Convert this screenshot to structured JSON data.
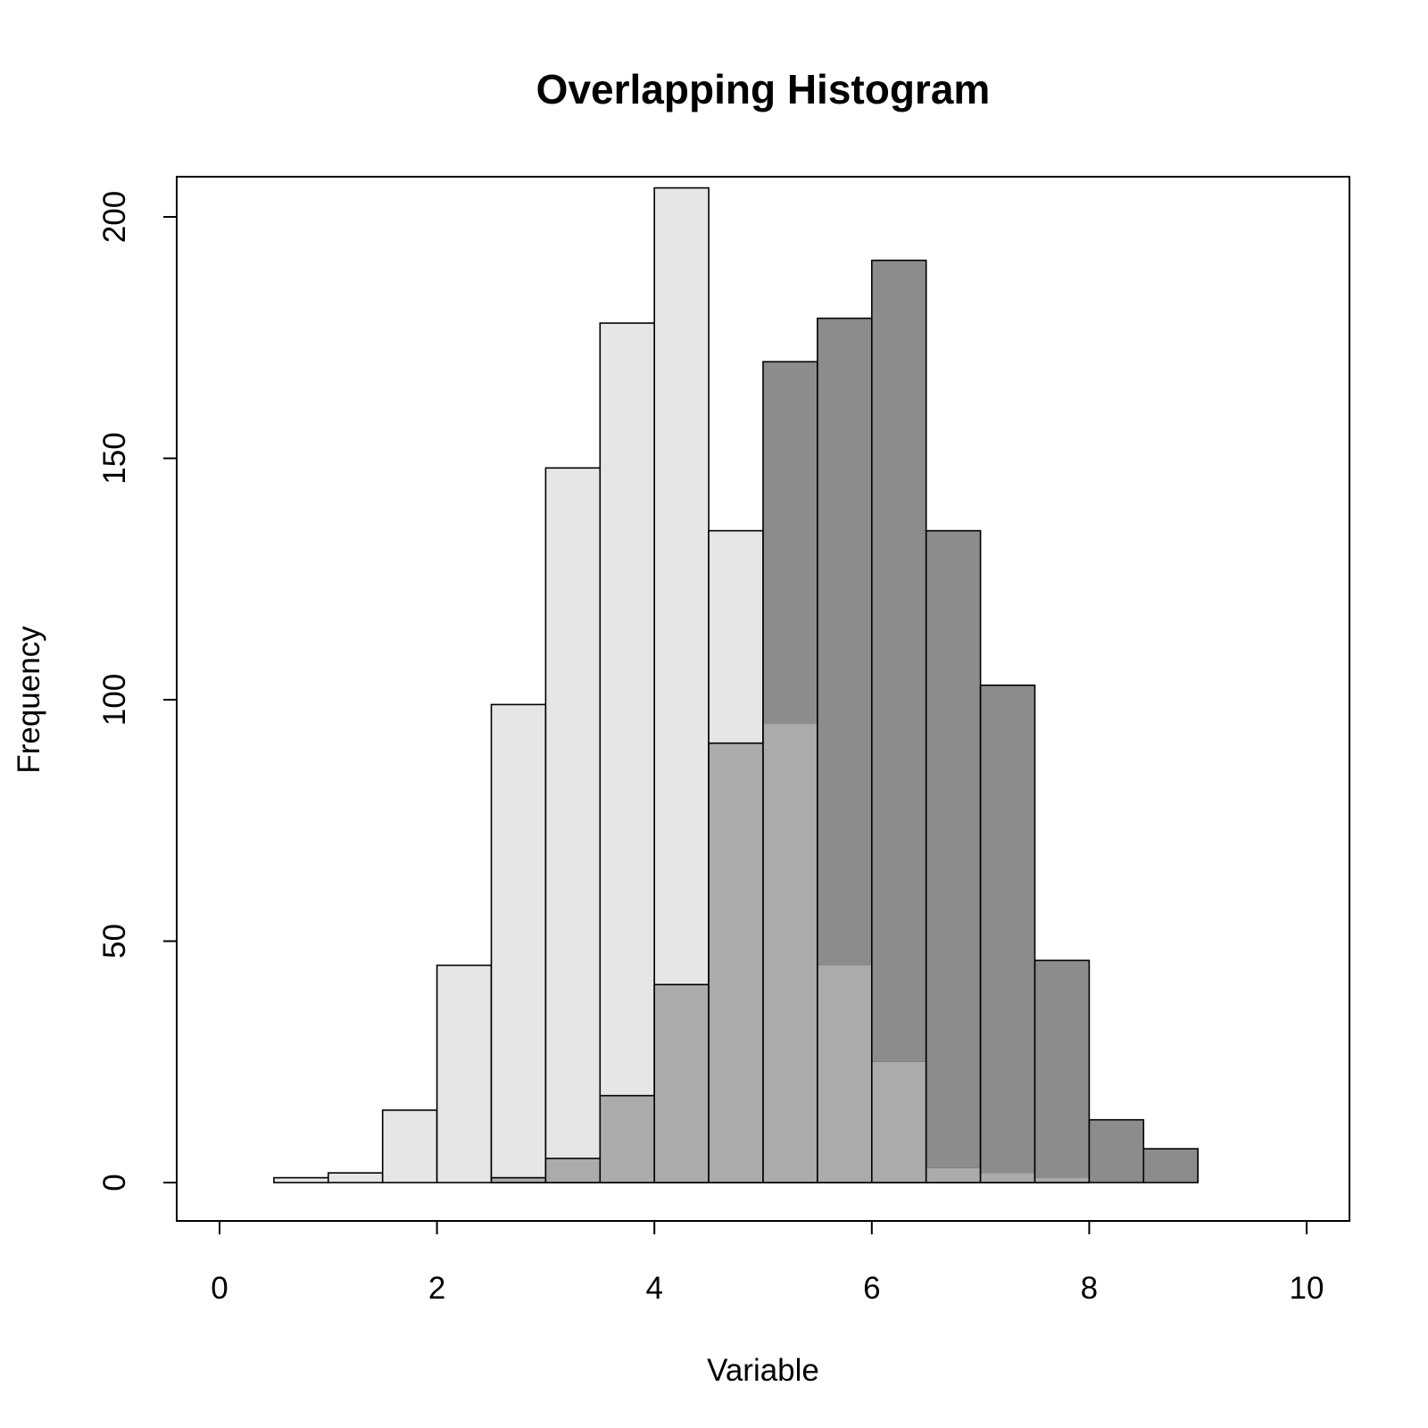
{
  "chart_data": {
    "type": "bar",
    "title": "Overlapping Histogram",
    "xlabel": "Variable",
    "ylabel": "Frequency",
    "xlim": [
      0,
      10
    ],
    "ylim": [
      0,
      200
    ],
    "xticks": [
      "0",
      "2",
      "4",
      "6",
      "8",
      "10"
    ],
    "yticks": [
      "0",
      "50",
      "100",
      "150",
      "200"
    ],
    "grid": false,
    "legend": "none",
    "bin_width": 0.5,
    "colors": {
      "first": "#e6e6e6",
      "second": "#8c8c8c",
      "overlap": "#ababab",
      "outline": "#000000"
    },
    "series": [
      {
        "bin_starts": [
          0.5,
          1.0,
          1.5,
          2.0,
          2.5,
          3.0,
          3.5,
          4.0,
          4.5,
          5.0,
          5.5,
          6.0,
          6.5,
          7.0,
          7.5
        ],
        "values": [
          1,
          2,
          15,
          45,
          99,
          148,
          178,
          206,
          135,
          95,
          45,
          25,
          3,
          2,
          1
        ]
      },
      {
        "bin_starts": [
          2.5,
          3.0,
          3.5,
          4.0,
          4.5,
          5.0,
          5.5,
          6.0,
          6.5,
          7.0,
          7.5,
          8.0,
          8.5
        ],
        "values": [
          1,
          5,
          18,
          41,
          91,
          170,
          179,
          191,
          135,
          103,
          46,
          13,
          7
        ]
      }
    ]
  }
}
